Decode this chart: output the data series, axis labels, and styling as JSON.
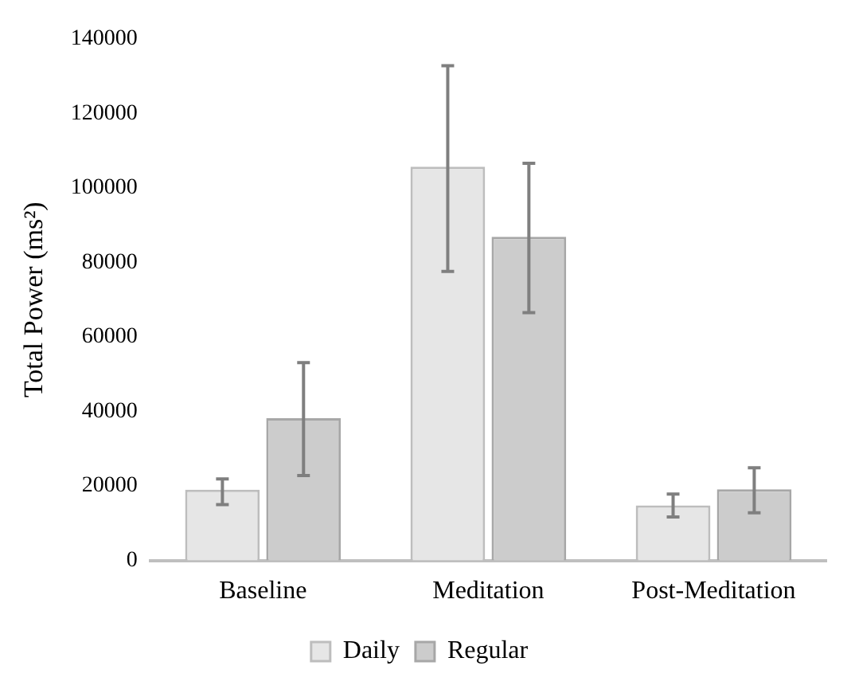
{
  "chart_data": {
    "type": "bar",
    "ylabel": "Total Power (ms²)",
    "categories": [
      "Baseline",
      "Meditation",
      "Post-Meditation"
    ],
    "series": [
      {
        "name": "Daily",
        "color": "#e6e6e6",
        "values": [
          19000,
          105700,
          14800
        ],
        "errors": [
          [
            15000,
            21900
          ],
          [
            77600,
            132800
          ],
          [
            11700,
            17800
          ]
        ]
      },
      {
        "name": "Regular",
        "color": "#cccccc",
        "values": [
          38200,
          86900,
          19100
        ],
        "errors": [
          [
            22800,
            53100
          ],
          [
            66500,
            106600
          ],
          [
            12800,
            24900
          ]
        ]
      }
    ],
    "ylim": [
      0,
      140000
    ],
    "yticks": [
      0,
      20000,
      40000,
      60000,
      80000,
      100000,
      120000,
      140000
    ],
    "grid": false,
    "legend": "bottom"
  }
}
